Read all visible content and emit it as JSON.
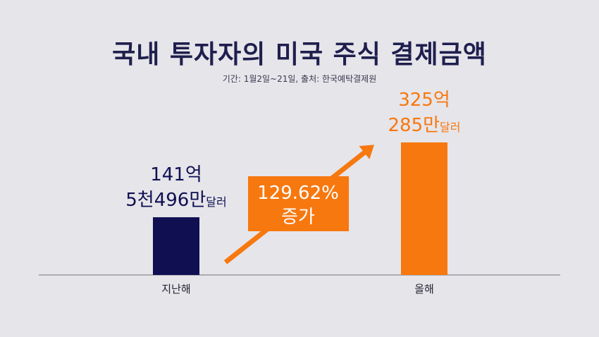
{
  "title": "국내 투자자의 미국 주식 결제금액",
  "subtitle": "기간: 1월2일~21일, 출처: 한국예탁결제원",
  "colors": {
    "background": "#e6e5ea",
    "navy": "#0f0f52",
    "orange": "#f7780f",
    "baseline": "#8a8a90"
  },
  "annotation": {
    "line1": "129.62%",
    "line2": "증가"
  },
  "chart_data": {
    "type": "bar",
    "categories": [
      "지난해",
      "올해"
    ],
    "values": [
      141.5496,
      325.0285
    ],
    "value_unit": "억달러",
    "data_labels": [
      {
        "line1": "141억",
        "line2_main": "5천496만",
        "line2_unit": "달러"
      },
      {
        "line1": "325억",
        "line2_main": "285만",
        "line2_unit": "달러"
      }
    ],
    "bar_colors": [
      "#0f0f52",
      "#f7780f"
    ],
    "ylim": [
      0,
      325.0285
    ],
    "grid": false,
    "legend": "none"
  }
}
